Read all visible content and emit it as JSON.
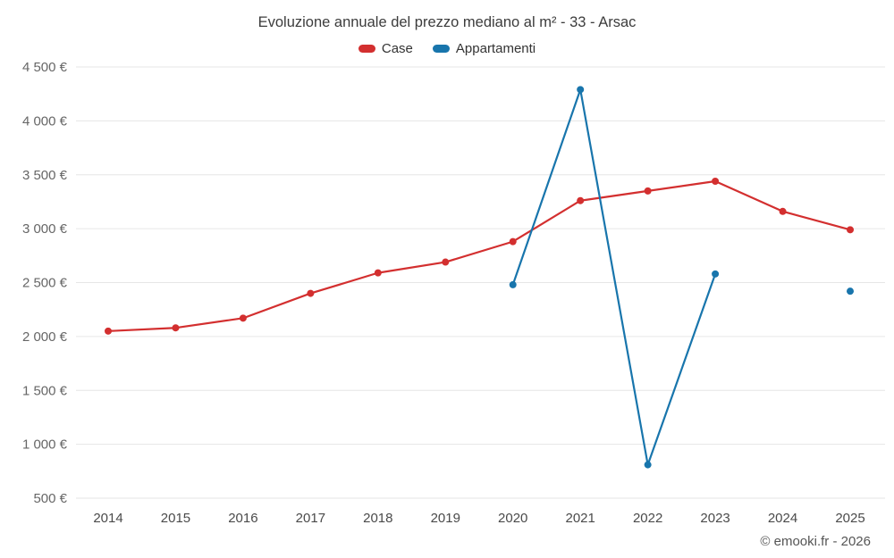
{
  "chart_data": {
    "type": "line",
    "title": "Evoluzione annuale del prezzo mediano al m² - 33 - Arsac",
    "categories": [
      "2014",
      "2015",
      "2016",
      "2017",
      "2018",
      "2019",
      "2020",
      "2021",
      "2022",
      "2023",
      "2024",
      "2025"
    ],
    "series": [
      {
        "name": "Case",
        "color": "#d32f2f",
        "values": [
          2050,
          2080,
          2170,
          2400,
          2590,
          2690,
          2880,
          3260,
          3350,
          3440,
          3160,
          2990
        ]
      },
      {
        "name": "Appartamenti",
        "color": "#1875ac",
        "values": [
          null,
          null,
          null,
          null,
          null,
          null,
          2480,
          4290,
          810,
          2580,
          null,
          2420
        ]
      }
    ],
    "ylabel": "",
    "xlabel": "",
    "ylim": [
      500,
      4500
    ],
    "ytick_step": 500,
    "ytick_suffix": " €",
    "grid": "horizontal",
    "legend_position": "top"
  },
  "footer": {
    "credit": "© emooki.fr - 2026"
  }
}
